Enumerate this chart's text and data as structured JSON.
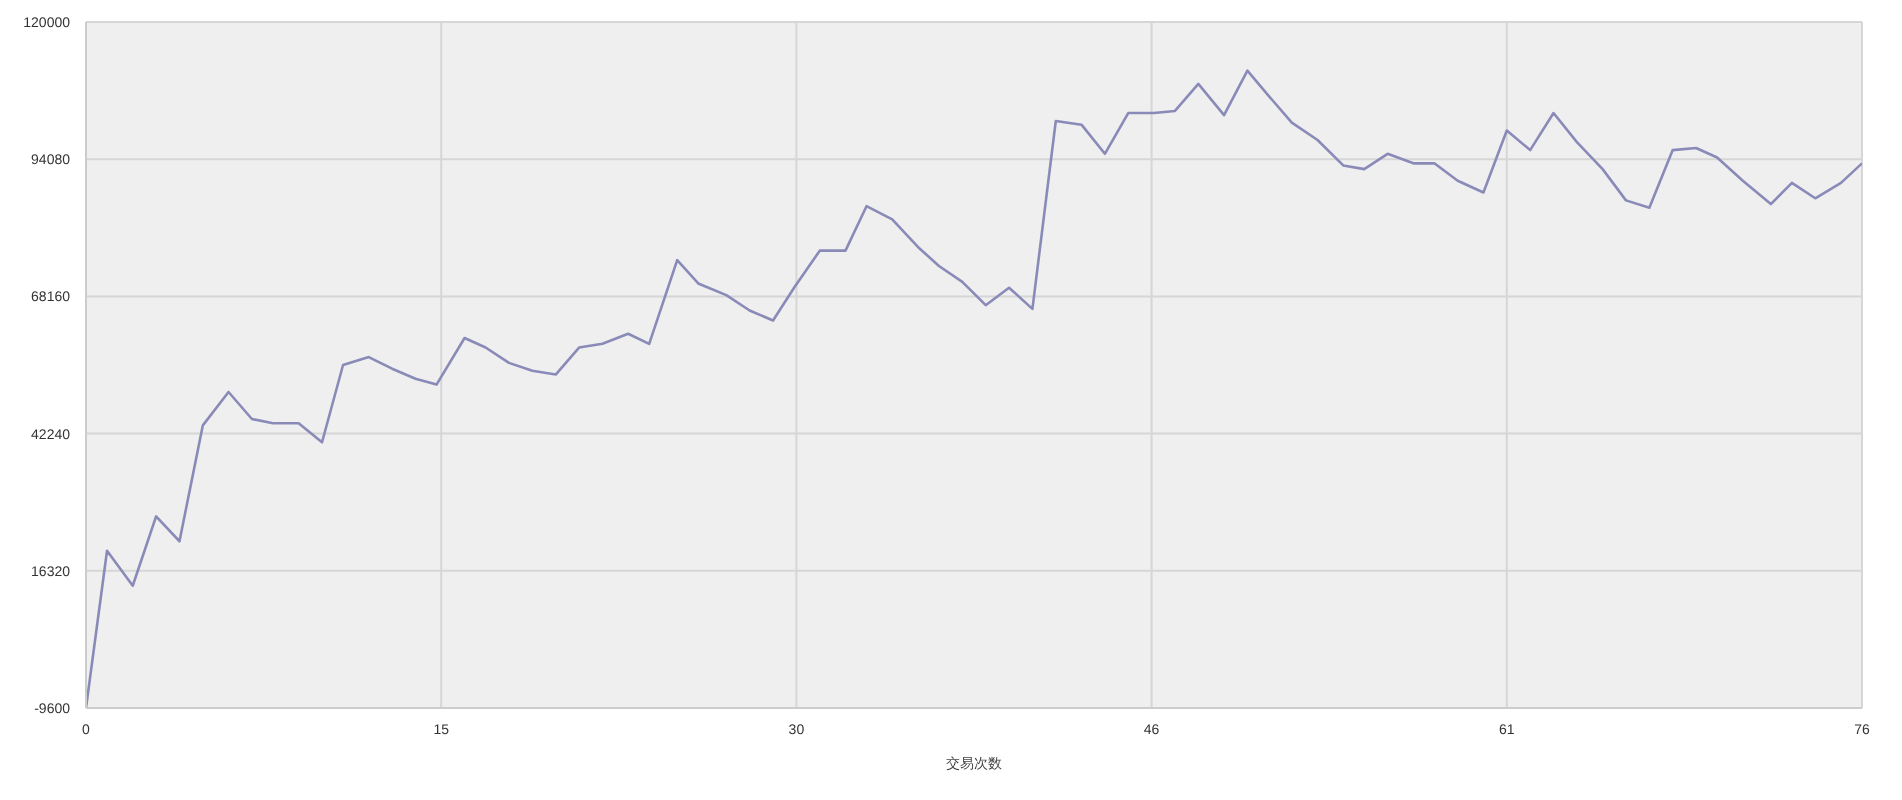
{
  "chart_data": {
    "type": "line",
    "xlabel": "交易次数",
    "x": [
      0,
      0.9,
      2.0,
      3.0,
      4.0,
      5.0,
      6.1,
      7.1,
      8.0,
      9.1,
      10.1,
      11.0,
      12.1,
      13.1,
      14.1,
      15.0,
      16.2,
      17.1,
      18.1,
      19.1,
      20.1,
      21.1,
      22.1,
      23.2,
      24.1,
      25.3,
      26.2,
      27.4,
      28.4,
      29.4,
      30.3,
      31.4,
      32.5,
      33.4,
      34.5,
      35.6,
      36.5,
      37.5,
      38.5,
      39.5,
      40.5,
      41.5,
      42.6,
      43.6,
      44.6,
      45.7,
      46.6,
      47.6,
      48.7,
      49.7,
      50.6,
      51.6,
      52.7,
      53.8,
      54.7,
      55.7,
      56.8,
      57.7,
      58.7,
      59.8,
      60.8,
      61.8,
      62.8,
      63.8,
      64.9,
      65.9,
      66.9,
      67.9,
      68.9,
      69.8,
      70.9,
      72.1,
      73.0,
      74.0,
      75.1,
      76
    ],
    "series": [
      {
        "color": "#8a8ab8",
        "values": [
          -9600,
          20100,
          13500,
          26600,
          21900,
          43800,
          50100,
          45000,
          44200,
          44200,
          40600,
          55200,
          56700,
          54500,
          52600,
          51500,
          60300,
          58500,
          55600,
          54100,
          53400,
          58500,
          59200,
          61100,
          59200,
          75000,
          70600,
          68400,
          65500,
          63600,
          69800,
          76800,
          76800,
          85200,
          82700,
          77500,
          73900,
          70900,
          66500,
          69800,
          65800,
          101300,
          100600,
          95100,
          102800,
          102800,
          103200,
          108300,
          102400,
          110800,
          106100,
          101000,
          97700,
          92900,
          92200,
          95100,
          93300,
          93300,
          90000,
          87800,
          99500,
          95800,
          102800,
          97300,
          92200,
          86300,
          84900,
          95800,
          96200,
          94400,
          90000,
          85600,
          89600,
          86700,
          89600,
          93300
        ]
      }
    ],
    "xlim": [
      0,
      76
    ],
    "xticks": [
      0,
      {
        "value": 15.2,
        "label": "15"
      },
      {
        "value": 30.4,
        "label": "30"
      },
      {
        "value": 45.6,
        "label": "46"
      },
      {
        "value": 60.8,
        "label": "61"
      },
      76
    ],
    "ylim": [
      -9600,
      120000
    ],
    "yticks": [
      -9600,
      16320,
      42240,
      68160,
      94080,
      120000
    ],
    "grid": true,
    "marker": "none",
    "line_style": "solid"
  }
}
